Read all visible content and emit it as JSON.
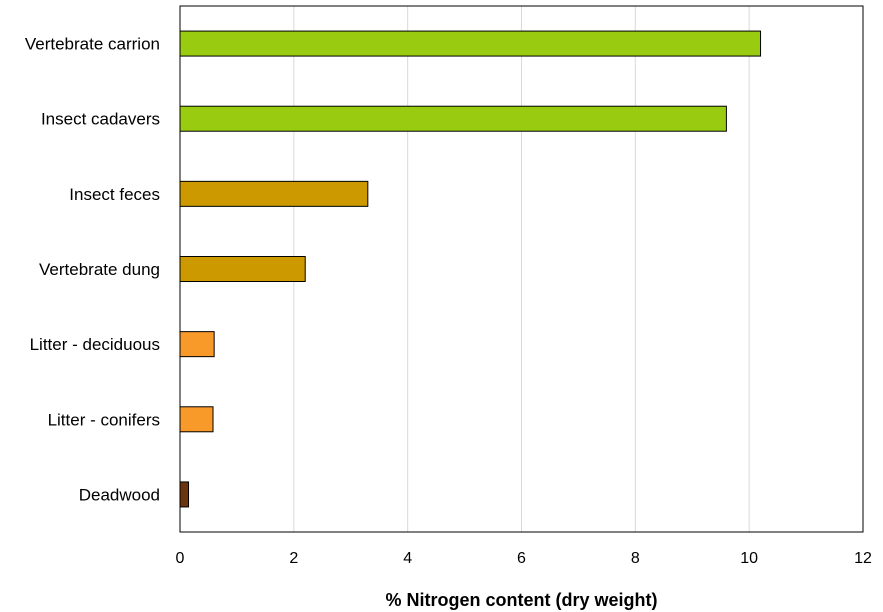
{
  "chart_data": {
    "type": "bar",
    "orientation": "horizontal",
    "categories": [
      "Vertebrate carrion",
      "Insect cadavers",
      "Insect feces",
      "Vertebrate dung",
      "Litter - deciduous",
      "Litter - conifers",
      "Deadwood"
    ],
    "values": [
      10.2,
      9.6,
      3.3,
      2.2,
      0.6,
      0.58,
      0.15
    ],
    "bar_colors": [
      "#99cc11",
      "#99cc11",
      "#cc9900",
      "#cc9900",
      "#f79a2a",
      "#f79a2a",
      "#6b3510"
    ],
    "title": "",
    "xlabel": "% Nitrogen content (dry weight)",
    "ylabel": "",
    "xlim": [
      0,
      12
    ],
    "xticks": [
      "0",
      "2",
      "4",
      "6",
      "8",
      "10",
      "12"
    ],
    "grid": "vertical",
    "legend": "none"
  }
}
